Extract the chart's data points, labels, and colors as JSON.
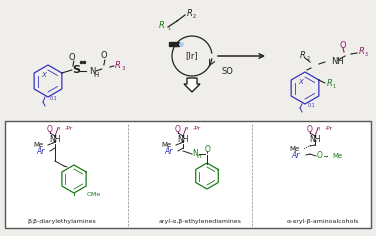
{
  "bg_color": "#f0eeeb",
  "box_color": "#ffffff",
  "box_border": "#444444",
  "reagent_color": "#8b1a6b",
  "blue_color": "#3333bb",
  "green_color": "#1a7a1a",
  "black_color": "#222222",
  "arrow_color": "#333333",
  "label1": "β,β-diarylethylamines",
  "label2": "aryl-α,β-ethylenediamines",
  "label3": "α-aryl-β-aminoalcohols",
  "ir_label": "[Ir]",
  "so_label": "SO"
}
